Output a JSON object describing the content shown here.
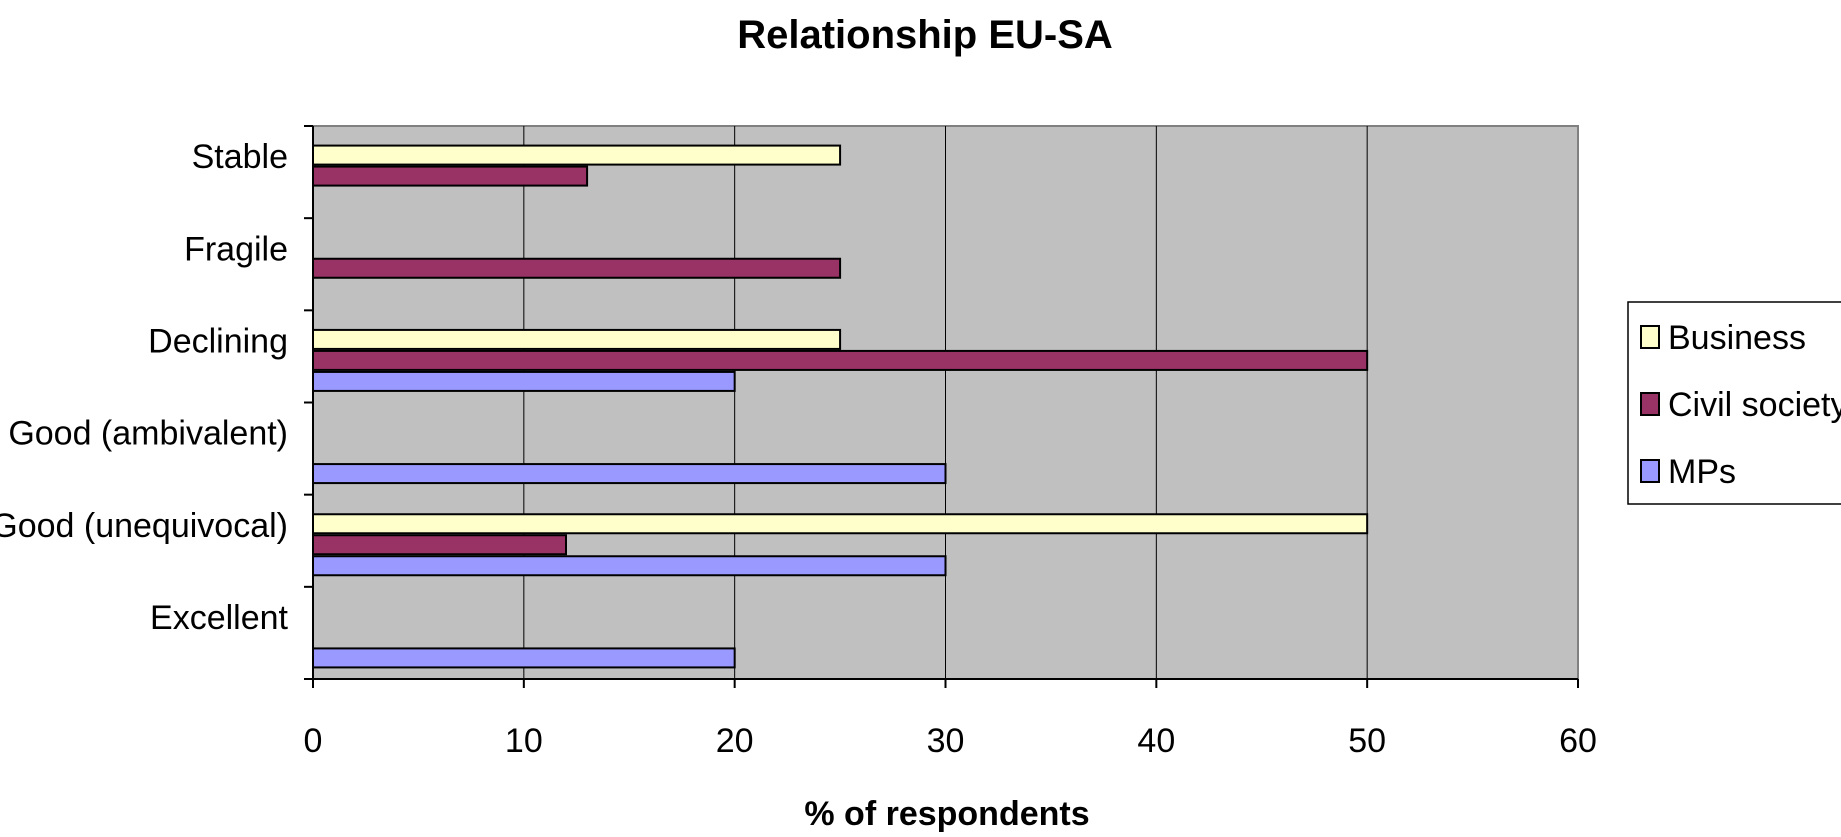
{
  "chart_data": {
    "type": "bar",
    "orientation": "horizontal",
    "title": "Relationship EU-SA",
    "xlabel": "% of respondents",
    "ylabel": "",
    "xlim": [
      0,
      60
    ],
    "xticks": [
      "0",
      "10",
      "20",
      "30",
      "40",
      "50",
      "60"
    ],
    "categories": [
      "Stable",
      "Fragile",
      "Declining",
      "Good (ambivalent)",
      "Good (unequivocal)",
      "Excellent"
    ],
    "series": [
      {
        "name": "Business",
        "color": "#ffffcc",
        "values": [
          25,
          0,
          25,
          0,
          50,
          0
        ]
      },
      {
        "name": "Civil society",
        "color": "#993366",
        "values": [
          13,
          25,
          50,
          0,
          12,
          0
        ]
      },
      {
        "name": "MPs",
        "color": "#9999ff",
        "values": [
          0,
          0,
          20,
          30,
          30,
          20
        ]
      }
    ],
    "grid": "vertical",
    "plot_background": "#c0c0c0",
    "legend_position": "right"
  }
}
